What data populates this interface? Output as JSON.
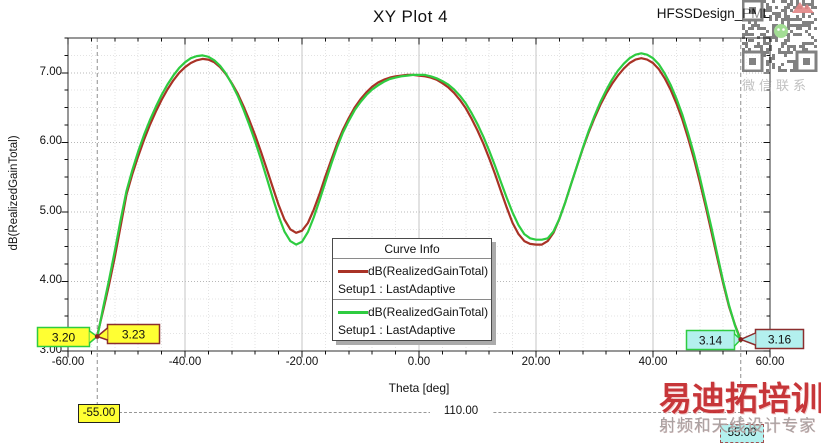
{
  "title": "XY Plot 4",
  "design_label": "HFSSDesign_PML",
  "watermark": {
    "wechat_caption": "微信联系",
    "brand_main": "易迪拓培训",
    "brand_sub": "射频和天线设计专家"
  },
  "legend": {
    "header": "Curve Info",
    "entries": [
      {
        "label": "dB(RealizedGainTotal)",
        "sub": "Setup1 : LastAdaptive",
        "color": "#a93226"
      },
      {
        "label": "dB(RealizedGainTotal)",
        "sub": "Setup1 : LastAdaptive",
        "color": "#2ecc40"
      }
    ]
  },
  "markers": {
    "left": [
      {
        "value": "3.20",
        "fill": "#ffff33",
        "border": "#2ecc40"
      },
      {
        "value": "3.23",
        "fill": "#ffff33",
        "border": "#8b2e2e"
      }
    ],
    "right": [
      {
        "value": "3.14",
        "fill": "#b3f0ee",
        "border": "#2ecc40"
      },
      {
        "value": "3.16",
        "fill": "#b3f0ee",
        "border": "#8b2e2e"
      }
    ],
    "x_left_label": "-55.00",
    "x_right_label": "55.00",
    "distance_label": "110.00",
    "dot_color": "#8b2020"
  },
  "chart_data": {
    "type": "line",
    "title": "XY Plot 4",
    "xlabel": "Theta [deg]",
    "ylabel": "dB(RealizedGainTotal)",
    "xlim": [
      -60,
      60
    ],
    "ylim": [
      3.0,
      7.5
    ],
    "x_major_step": 20,
    "x_minor_step": 4,
    "y_major_step": 1.0,
    "y_minor_step": 0.25,
    "grid": true,
    "legend_position": "lower center",
    "x_ticks": [
      "-60.00",
      "-40.00",
      "-20.00",
      "0.00",
      "20.00",
      "40.00",
      "60.00"
    ],
    "y_ticks": [
      "3.00",
      "4.00",
      "5.00",
      "6.00",
      "7.00"
    ],
    "marker_lines_theta": [
      -55,
      55
    ],
    "series": [
      {
        "name": "dB(RealizedGainTotal)",
        "setup": "Setup1 : LastAdaptive",
        "color": "#a93226",
        "points": [
          [
            -55,
            3.23
          ],
          [
            -54,
            3.58
          ],
          [
            -53,
            3.95
          ],
          [
            -52,
            4.35
          ],
          [
            -51,
            4.8
          ],
          [
            -50,
            5.25
          ],
          [
            -49,
            5.54
          ],
          [
            -48,
            5.8
          ],
          [
            -47,
            6.04
          ],
          [
            -46,
            6.25
          ],
          [
            -45,
            6.44
          ],
          [
            -44,
            6.61
          ],
          [
            -43,
            6.76
          ],
          [
            -42,
            6.89
          ],
          [
            -41,
            7.0
          ],
          [
            -40,
            7.08
          ],
          [
            -39,
            7.14
          ],
          [
            -38,
            7.18
          ],
          [
            -37,
            7.2
          ],
          [
            -36,
            7.19
          ],
          [
            -35,
            7.15
          ],
          [
            -34,
            7.08
          ],
          [
            -33,
            6.98
          ],
          [
            -32,
            6.85
          ],
          [
            -31,
            6.7
          ],
          [
            -30,
            6.52
          ],
          [
            -29,
            6.32
          ],
          [
            -28,
            6.1
          ],
          [
            -27,
            5.86
          ],
          [
            -26,
            5.61
          ],
          [
            -25,
            5.35
          ],
          [
            -24,
            5.1
          ],
          [
            -23,
            4.89
          ],
          [
            -22,
            4.75
          ],
          [
            -21,
            4.7
          ],
          [
            -20,
            4.73
          ],
          [
            -19,
            4.84
          ],
          [
            -18,
            5.03
          ],
          [
            -17,
            5.26
          ],
          [
            -16,
            5.51
          ],
          [
            -15,
            5.75
          ],
          [
            -14,
            5.98
          ],
          [
            -13,
            6.18
          ],
          [
            -12,
            6.35
          ],
          [
            -11,
            6.5
          ],
          [
            -10,
            6.62
          ],
          [
            -9,
            6.72
          ],
          [
            -8,
            6.8
          ],
          [
            -7,
            6.86
          ],
          [
            -6,
            6.9
          ],
          [
            -5,
            6.93
          ],
          [
            -4,
            6.95
          ],
          [
            -3,
            6.96
          ],
          [
            -2,
            6.97
          ],
          [
            -1,
            6.97
          ],
          [
            0,
            6.96
          ],
          [
            1,
            6.95
          ],
          [
            2,
            6.93
          ],
          [
            3,
            6.9
          ],
          [
            4,
            6.85
          ],
          [
            5,
            6.79
          ],
          [
            6,
            6.71
          ],
          [
            7,
            6.61
          ],
          [
            8,
            6.49
          ],
          [
            9,
            6.34
          ],
          [
            10,
            6.17
          ],
          [
            11,
            5.98
          ],
          [
            12,
            5.77
          ],
          [
            13,
            5.54
          ],
          [
            14,
            5.3
          ],
          [
            15,
            5.06
          ],
          [
            16,
            4.84
          ],
          [
            17,
            4.68
          ],
          [
            18,
            4.58
          ],
          [
            19,
            4.54
          ],
          [
            20,
            4.53
          ],
          [
            21,
            4.53
          ],
          [
            22,
            4.58
          ],
          [
            23,
            4.7
          ],
          [
            24,
            4.9
          ],
          [
            25,
            5.14
          ],
          [
            26,
            5.4
          ],
          [
            27,
            5.66
          ],
          [
            28,
            5.91
          ],
          [
            29,
            6.14
          ],
          [
            30,
            6.35
          ],
          [
            31,
            6.54
          ],
          [
            32,
            6.7
          ],
          [
            33,
            6.84
          ],
          [
            34,
            6.96
          ],
          [
            35,
            7.06
          ],
          [
            36,
            7.14
          ],
          [
            37,
            7.19
          ],
          [
            38,
            7.21
          ],
          [
            39,
            7.19
          ],
          [
            40,
            7.14
          ],
          [
            41,
            7.05
          ],
          [
            42,
            6.92
          ],
          [
            43,
            6.76
          ],
          [
            44,
            6.56
          ],
          [
            45,
            6.33
          ],
          [
            46,
            6.06
          ],
          [
            47,
            5.76
          ],
          [
            48,
            5.43
          ],
          [
            49,
            5.08
          ],
          [
            50,
            4.71
          ],
          [
            51,
            4.33
          ],
          [
            52,
            3.97
          ],
          [
            53,
            3.64
          ],
          [
            54,
            3.38
          ],
          [
            55,
            3.16
          ]
        ]
      },
      {
        "name": "dB(RealizedGainTotal)",
        "setup": "Setup1 : LastAdaptive",
        "color": "#2ecc40",
        "points": [
          [
            -55,
            3.2
          ],
          [
            -54,
            3.62
          ],
          [
            -53,
            4.02
          ],
          [
            -52,
            4.44
          ],
          [
            -51,
            4.89
          ],
          [
            -50,
            5.3
          ],
          [
            -49,
            5.6
          ],
          [
            -48,
            5.87
          ],
          [
            -47,
            6.11
          ],
          [
            -46,
            6.32
          ],
          [
            -45,
            6.51
          ],
          [
            -44,
            6.68
          ],
          [
            -43,
            6.83
          ],
          [
            -42,
            6.96
          ],
          [
            -41,
            7.07
          ],
          [
            -40,
            7.15
          ],
          [
            -39,
            7.21
          ],
          [
            -38,
            7.24
          ],
          [
            -37,
            7.25
          ],
          [
            -36,
            7.23
          ],
          [
            -35,
            7.18
          ],
          [
            -34,
            7.1
          ],
          [
            -33,
            6.99
          ],
          [
            -32,
            6.84
          ],
          [
            -31,
            6.67
          ],
          [
            -30,
            6.47
          ],
          [
            -29,
            6.25
          ],
          [
            -28,
            6.01
          ],
          [
            -27,
            5.75
          ],
          [
            -26,
            5.48
          ],
          [
            -25,
            5.2
          ],
          [
            -24,
            4.94
          ],
          [
            -23,
            4.72
          ],
          [
            -22,
            4.58
          ],
          [
            -21,
            4.53
          ],
          [
            -20,
            4.57
          ],
          [
            -19,
            4.71
          ],
          [
            -18,
            4.92
          ],
          [
            -17,
            5.17
          ],
          [
            -16,
            5.43
          ],
          [
            -15,
            5.69
          ],
          [
            -14,
            5.93
          ],
          [
            -13,
            6.14
          ],
          [
            -12,
            6.31
          ],
          [
            -11,
            6.46
          ],
          [
            -10,
            6.58
          ],
          [
            -9,
            6.68
          ],
          [
            -8,
            6.76
          ],
          [
            -7,
            6.82
          ],
          [
            -6,
            6.87
          ],
          [
            -5,
            6.91
          ],
          [
            -4,
            6.93
          ],
          [
            -3,
            6.95
          ],
          [
            -2,
            6.96
          ],
          [
            -1,
            6.97
          ],
          [
            0,
            6.97
          ],
          [
            1,
            6.97
          ],
          [
            2,
            6.95
          ],
          [
            3,
            6.92
          ],
          [
            4,
            6.88
          ],
          [
            5,
            6.83
          ],
          [
            6,
            6.76
          ],
          [
            7,
            6.67
          ],
          [
            8,
            6.56
          ],
          [
            9,
            6.42
          ],
          [
            10,
            6.26
          ],
          [
            11,
            6.08
          ],
          [
            12,
            5.88
          ],
          [
            13,
            5.66
          ],
          [
            14,
            5.43
          ],
          [
            15,
            5.2
          ],
          [
            16,
            4.99
          ],
          [
            17,
            4.81
          ],
          [
            18,
            4.68
          ],
          [
            19,
            4.62
          ],
          [
            20,
            4.6
          ],
          [
            21,
            4.6
          ],
          [
            22,
            4.62
          ],
          [
            23,
            4.72
          ],
          [
            24,
            4.9
          ],
          [
            25,
            5.14
          ],
          [
            26,
            5.4
          ],
          [
            27,
            5.66
          ],
          [
            28,
            5.92
          ],
          [
            29,
            6.16
          ],
          [
            30,
            6.38
          ],
          [
            31,
            6.58
          ],
          [
            32,
            6.75
          ],
          [
            33,
            6.9
          ],
          [
            34,
            7.03
          ],
          [
            35,
            7.13
          ],
          [
            36,
            7.21
          ],
          [
            37,
            7.26
          ],
          [
            38,
            7.28
          ],
          [
            39,
            7.26
          ],
          [
            40,
            7.21
          ],
          [
            41,
            7.12
          ],
          [
            42,
            6.99
          ],
          [
            43,
            6.83
          ],
          [
            44,
            6.63
          ],
          [
            45,
            6.4
          ],
          [
            46,
            6.13
          ],
          [
            47,
            5.83
          ],
          [
            48,
            5.5
          ],
          [
            49,
            5.14
          ],
          [
            50,
            4.77
          ],
          [
            51,
            4.38
          ],
          [
            52,
            4.0
          ],
          [
            53,
            3.66
          ],
          [
            54,
            3.37
          ],
          [
            55,
            3.14
          ]
        ]
      }
    ]
  }
}
